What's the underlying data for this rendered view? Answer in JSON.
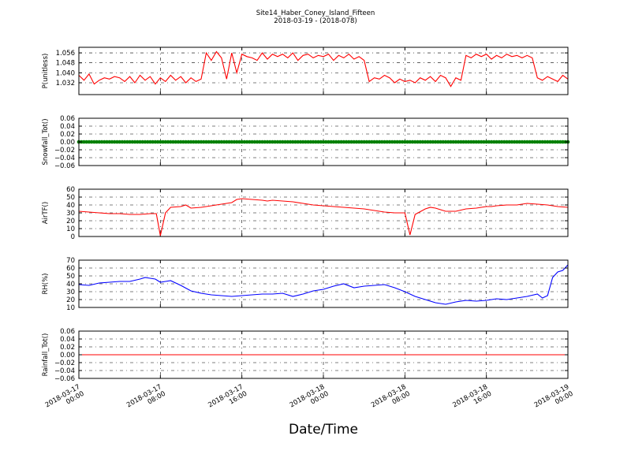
{
  "title_line1": "Site14_Haber_Coney_Island_Fifteen",
  "title_line2": "2018-03-19 - (2018-078)",
  "xlabel": "Date/Time",
  "x_ticks": [
    "2018-03-17\n00:00",
    "2018-03-17\n08:00",
    "2018-03-17\n16:00",
    "2018-03-18\n00:00",
    "2018-03-18\n08:00",
    "2018-03-18\n16:00",
    "2018-03-19\n00:00"
  ],
  "chart_data": [
    {
      "type": "line",
      "ylabel": "P(unitless)",
      "ylim": [
        1.0225,
        1.0605
      ],
      "yticks": [
        "1.032",
        "1.040",
        "1.048",
        "1.056"
      ],
      "ytick_values": [
        1.032,
        1.04,
        1.048,
        1.056
      ],
      "color": "#ff0000",
      "xlim": [
        0,
        48
      ],
      "grid": true,
      "x": [
        0,
        0.5,
        1,
        1.5,
        2,
        2.5,
        3,
        3.5,
        4,
        4.5,
        5,
        5.5,
        6,
        6.5,
        7,
        7.5,
        8,
        8.5,
        9,
        9.5,
        10,
        10.5,
        11,
        11.5,
        12,
        12.5,
        13,
        13.5,
        14,
        14.5,
        15,
        15.5,
        16,
        16.5,
        17,
        17.5,
        18,
        18.5,
        19,
        19.5,
        20,
        20.5,
        21,
        21.5,
        22,
        22.5,
        23,
        23.5,
        24,
        24.5,
        25,
        25.5,
        26,
        26.5,
        27,
        27.5,
        28,
        28.5,
        29,
        29.5,
        30,
        30.5,
        31,
        31.5,
        32,
        32.5,
        33,
        33.5,
        34,
        34.5,
        35,
        35.5,
        36,
        36.5,
        37,
        37.5,
        38,
        38.5,
        39,
        39.5,
        40,
        40.5,
        41,
        41.5,
        42,
        42.5,
        43,
        43.5,
        44,
        44.5,
        45,
        45.5,
        46,
        46.5,
        47,
        47.5,
        48
      ],
      "values": [
        1.038,
        1.034,
        1.039,
        1.031,
        1.034,
        1.036,
        1.035,
        1.037,
        1.036,
        1.033,
        1.037,
        1.032,
        1.038,
        1.034,
        1.037,
        1.031,
        1.036,
        1.033,
        1.038,
        1.034,
        1.037,
        1.032,
        1.036,
        1.033,
        1.035,
        1.056,
        1.05,
        1.057,
        1.052,
        1.035,
        1.056,
        1.04,
        1.055,
        1.053,
        1.052,
        1.05,
        1.056,
        1.051,
        1.055,
        1.053,
        1.055,
        1.052,
        1.056,
        1.05,
        1.054,
        1.055,
        1.052,
        1.054,
        1.053,
        1.055,
        1.05,
        1.054,
        1.052,
        1.055,
        1.051,
        1.053,
        1.05,
        1.033,
        1.036,
        1.035,
        1.038,
        1.036,
        1.032,
        1.035,
        1.033,
        1.034,
        1.032,
        1.036,
        1.034,
        1.037,
        1.033,
        1.038,
        1.036,
        1.029,
        1.036,
        1.034,
        1.054,
        1.052,
        1.055,
        1.053,
        1.055,
        1.051,
        1.054,
        1.052,
        1.055,
        1.053,
        1.054,
        1.052,
        1.054,
        1.052,
        1.036,
        1.034,
        1.037,
        1.035,
        1.033,
        1.038,
        1.035
      ]
    },
    {
      "type": "line",
      "ylabel": "Snowfall_Tot()",
      "ylim": [
        -0.06,
        0.06
      ],
      "yticks": [
        "−0.06",
        "−0.04",
        "−0.02",
        "0.00",
        "0.02",
        "0.04",
        "0.06"
      ],
      "ytick_values": [
        -0.06,
        -0.04,
        -0.02,
        0.0,
        0.02,
        0.04,
        0.06
      ],
      "color": "#008000",
      "xlim": [
        0,
        48
      ],
      "grid": true,
      "x": [
        0,
        48
      ],
      "values": [
        0.0,
        0.0
      ],
      "markers": true
    },
    {
      "type": "line",
      "ylabel": "AirTF()",
      "ylim": [
        0,
        60
      ],
      "yticks": [
        "0",
        "10",
        "20",
        "30",
        "40",
        "50",
        "60"
      ],
      "ytick_values": [
        0,
        10,
        20,
        30,
        40,
        50,
        60
      ],
      "color": "#ff0000",
      "xlim": [
        0,
        48
      ],
      "grid": true,
      "x": [
        0,
        1,
        2,
        3,
        4,
        5,
        6,
        7,
        7.6,
        8,
        8.5,
        9,
        10,
        10.5,
        11,
        12,
        13,
        14,
        15,
        15.5,
        16,
        17,
        18,
        18.5,
        19,
        20,
        21,
        22,
        23,
        24,
        25,
        26,
        27,
        28,
        29,
        30,
        31,
        31.6,
        32,
        32.5,
        33,
        34,
        34.5,
        35,
        36,
        37,
        38,
        39,
        40,
        40.5,
        41,
        42,
        43,
        44,
        45,
        46,
        47,
        48
      ],
      "values": [
        32,
        31,
        30,
        29,
        29,
        28,
        28,
        29,
        29,
        1,
        30,
        37,
        38,
        40,
        36,
        37,
        39,
        41,
        43,
        47,
        48,
        47,
        46,
        45,
        46,
        45,
        44,
        42,
        40,
        39,
        38,
        37,
        36,
        35,
        33,
        31,
        30,
        30,
        30,
        2,
        28,
        35,
        37,
        36,
        32,
        32,
        35,
        36,
        38,
        38,
        39,
        40,
        40,
        42,
        41,
        40,
        38,
        37
      ]
    },
    {
      "type": "line",
      "ylabel": "RH(%)",
      "ylim": [
        10,
        70
      ],
      "yticks": [
        "10",
        "20",
        "30",
        "40",
        "50",
        "60",
        "70"
      ],
      "ytick_values": [
        10,
        20,
        30,
        40,
        50,
        60,
        70
      ],
      "color": "#0000ff",
      "xlim": [
        0,
        48
      ],
      "grid": true,
      "x": [
        0,
        1,
        2,
        3,
        4,
        5,
        6,
        6.5,
        7,
        7.5,
        8,
        8.5,
        9,
        10,
        11,
        12,
        13,
        14,
        15,
        16,
        17,
        18,
        19,
        20,
        21,
        22,
        23,
        24,
        25,
        26,
        27,
        28,
        29,
        30,
        31,
        32,
        33,
        34,
        35,
        36,
        37,
        38,
        39,
        40,
        41,
        42,
        43,
        44,
        45,
        45.5,
        46,
        46.5,
        47,
        47.5,
        48
      ],
      "values": [
        39,
        38,
        41,
        42,
        43,
        43,
        46,
        48,
        47,
        46,
        42,
        43,
        44,
        38,
        31,
        28,
        26,
        25,
        24,
        25,
        26,
        27,
        27,
        28,
        24,
        27,
        31,
        33,
        37,
        40,
        35,
        37,
        38,
        39,
        35,
        30,
        24,
        20,
        16,
        14,
        17,
        19,
        18,
        19,
        21,
        20,
        22,
        24,
        27,
        22,
        25,
        48,
        55,
        57,
        64
      ]
    },
    {
      "type": "line",
      "ylabel": "Rainfall_Tot()",
      "ylim": [
        -0.06,
        0.06
      ],
      "yticks": [
        "−0.06",
        "−0.04",
        "−0.02",
        "0.00",
        "0.02",
        "0.04",
        "0.06"
      ],
      "ytick_values": [
        -0.06,
        -0.04,
        -0.02,
        0.0,
        0.02,
        0.04,
        0.06
      ],
      "color": "#ff0000",
      "xlim": [
        0,
        48
      ],
      "grid": true,
      "x": [
        0,
        48
      ],
      "values": [
        0.0,
        0.0
      ]
    }
  ]
}
